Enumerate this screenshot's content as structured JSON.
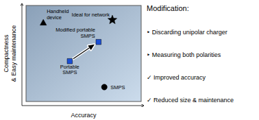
{
  "chart_data": {
    "type": "scatter",
    "xlabel": "Accuracy",
    "ylabel": "Compactness\n& Easy maintenance",
    "xlim": [
      0,
      10
    ],
    "ylim": [
      0,
      10
    ],
    "xticks": [],
    "yticks": [],
    "tick_labels": false,
    "grid": false,
    "series": [
      {
        "name": "Handheld\ndevice",
        "marker": "triangle",
        "color": "black",
        "x": [
          1.5
        ],
        "values": [
          8.2
        ]
      },
      {
        "name": "Ideal for network",
        "marker": "star",
        "color": "black",
        "x": [
          7.5
        ],
        "values": [
          8.5
        ]
      },
      {
        "name": "Modified portable\nSMPS",
        "marker": "square",
        "color": "#1a4fd6",
        "x": [
          6.3
        ],
        "values": [
          6.2
        ]
      },
      {
        "name": "Portable\nSMPS",
        "marker": "square",
        "color": "#1a4fd6",
        "x": [
          3.8
        ],
        "values": [
          4.2
        ]
      },
      {
        "name": "SMPS",
        "marker": "circle",
        "color": "black",
        "x": [
          6.8
        ],
        "values": [
          1.5
        ]
      }
    ],
    "arrow": {
      "from": [
        4.1,
        4.45
      ],
      "to": [
        5.95,
        5.95
      ]
    },
    "notes": {
      "title": "Modification:",
      "items": [
        "‣  Discarding unipolar charger",
        "‣  Measuring both polarities",
        "✓ Improved accuracy",
        "✓ Reduced size & maintenance"
      ]
    }
  }
}
